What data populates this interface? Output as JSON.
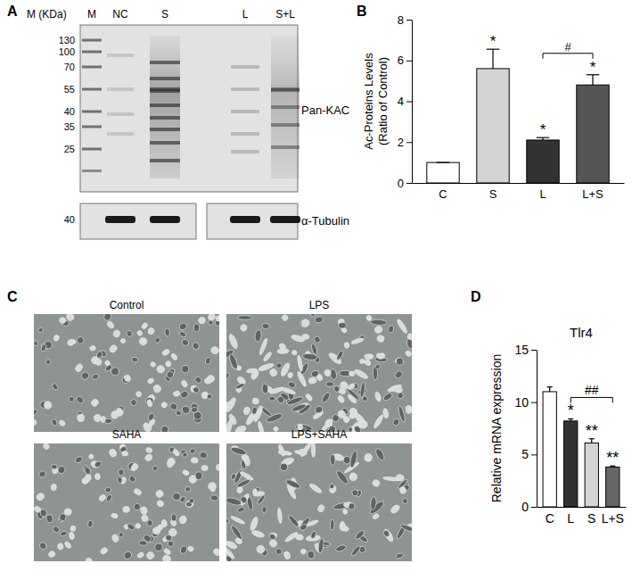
{
  "blot": {
    "panel_label": "A",
    "marker_header": "M (KDa)",
    "lanes": [
      "M",
      "NC",
      "S",
      "L",
      "S+L"
    ],
    "markers": [
      130,
      100,
      70,
      55,
      40,
      35,
      25
    ],
    "target": "Pan-KAC",
    "loading_marker": 40,
    "loading": "α-Tubulin"
  },
  "micrographs": {
    "panel_label": "C",
    "images": [
      "Control",
      "LPS",
      "SAHA",
      "LPS+SAHA"
    ]
  },
  "chart_data": [
    {
      "type": "bar",
      "panel_label": "B",
      "y_label": [
        "Ac-Proteins Levels",
        "(Ratio of Control)"
      ],
      "categories": [
        "C",
        "S",
        "L",
        "L+S"
      ],
      "values": [
        1,
        5.6,
        2.1,
        4.8
      ],
      "errors": [
        0,
        0.95,
        0.12,
        0.5
      ],
      "colors": [
        "#ffffff",
        "#d4d4d4",
        "#333333",
        "#555555"
      ],
      "ylim": [
        0,
        8
      ],
      "yticks": [
        0,
        2,
        4,
        6,
        8
      ],
      "annotations": [
        {
          "text": "*",
          "category": 1
        },
        {
          "text": "*",
          "category": 2
        },
        {
          "text": "*",
          "category": 3
        },
        {
          "text": "#",
          "from": 2,
          "to": 3
        }
      ]
    },
    {
      "type": "bar",
      "panel_label": "D",
      "title": "Tlr4",
      "y_label": "Relative mRNA expression",
      "categories": [
        "C",
        "L",
        "S",
        "L+S"
      ],
      "values": [
        11.0,
        8.2,
        6.1,
        3.8
      ],
      "errors": [
        0.45,
        0.2,
        0.4,
        0.1
      ],
      "colors": [
        "#ffffff",
        "#333333",
        "#d4d4d4",
        "#666666"
      ],
      "ylim": [
        0,
        15
      ],
      "yticks": [
        0,
        5,
        10,
        15
      ],
      "annotations": [
        {
          "text": "*",
          "category": 1
        },
        {
          "text": "**",
          "category": 2
        },
        {
          "text": "**",
          "category": 3
        },
        {
          "text": "##",
          "from": 1,
          "to": 3
        }
      ]
    }
  ]
}
